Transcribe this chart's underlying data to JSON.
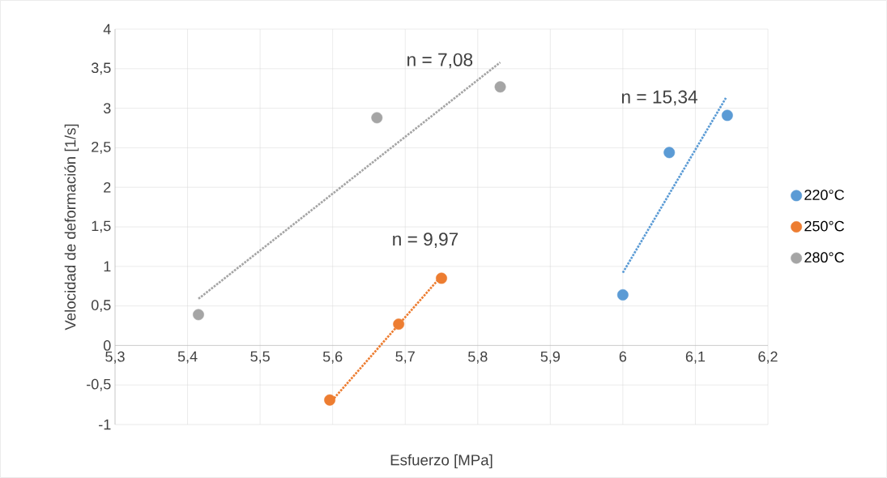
{
  "chart_data": {
    "type": "scatter",
    "xlabel": "Esfuerzo [MPa]",
    "ylabel": "Velocidad de deformación [1/s]",
    "xlim": [
      5.3,
      6.2
    ],
    "ylim": [
      -1,
      4
    ],
    "xticks": [
      {
        "value": 5.3,
        "label": "5,3"
      },
      {
        "value": 5.4,
        "label": "5,4"
      },
      {
        "value": 5.5,
        "label": "5,5"
      },
      {
        "value": 5.6,
        "label": "5,6"
      },
      {
        "value": 5.7,
        "label": "5,7"
      },
      {
        "value": 5.8,
        "label": "5,8"
      },
      {
        "value": 5.9,
        "label": "5,9"
      },
      {
        "value": 6,
        "label": "6"
      },
      {
        "value": 6.1,
        "label": "6,1"
      },
      {
        "value": 6.2,
        "label": "6,2"
      }
    ],
    "yticks": [
      {
        "value": -1,
        "label": "-1"
      },
      {
        "value": -0.5,
        "label": "-0,5"
      },
      {
        "value": 0,
        "label": "0"
      },
      {
        "value": 0.5,
        "label": "0,5"
      },
      {
        "value": 1,
        "label": "1"
      },
      {
        "value": 1.5,
        "label": "1,5"
      },
      {
        "value": 2,
        "label": "2"
      },
      {
        "value": 2.5,
        "label": "2,5"
      },
      {
        "value": 3,
        "label": "3"
      },
      {
        "value": 3.5,
        "label": "3,5"
      },
      {
        "value": 4,
        "label": "4"
      }
    ],
    "grid": true,
    "legend": "right",
    "series": [
      {
        "name": "220°C",
        "marker": "circle",
        "color": "#5b9bd5",
        "x": [
          6.0,
          6.064,
          6.144
        ],
        "values": [
          0.64,
          2.44,
          2.91
        ]
      },
      {
        "name": "250°C",
        "marker": "circle",
        "color": "#ed7d31",
        "x": [
          5.596,
          5.691,
          5.75
        ],
        "values": [
          -0.69,
          0.27,
          0.85
        ]
      },
      {
        "name": "280°C",
        "marker": "circle",
        "color": "#a5a5a5",
        "x": [
          5.415,
          5.661,
          5.831
        ],
        "values": [
          0.39,
          2.88,
          3.27
        ]
      },
      {
        "type": "line",
        "line_style": "dotted",
        "color": "#5b9bd5",
        "x": [
          6.0,
          6.142
        ],
        "values": [
          0.92,
          3.13
        ]
      },
      {
        "type": "line",
        "line_style": "dotted",
        "color": "#ed7d31",
        "x": [
          5.596,
          5.75
        ],
        "values": [
          -0.73,
          0.88
        ]
      },
      {
        "type": "line",
        "line_style": "dotted",
        "color": "#a5a5a5",
        "x": [
          5.415,
          5.831
        ],
        "values": [
          0.59,
          3.58
        ]
      }
    ],
    "annotations": [
      {
        "text": "n = 7,08",
        "x": 5.831,
        "y": 3.58
      },
      {
        "text": "n = 9,97",
        "x": 5.75,
        "y": 0.88
      },
      {
        "text": "n = 15,34",
        "x": 6.142,
        "y": 3.13
      }
    ]
  }
}
